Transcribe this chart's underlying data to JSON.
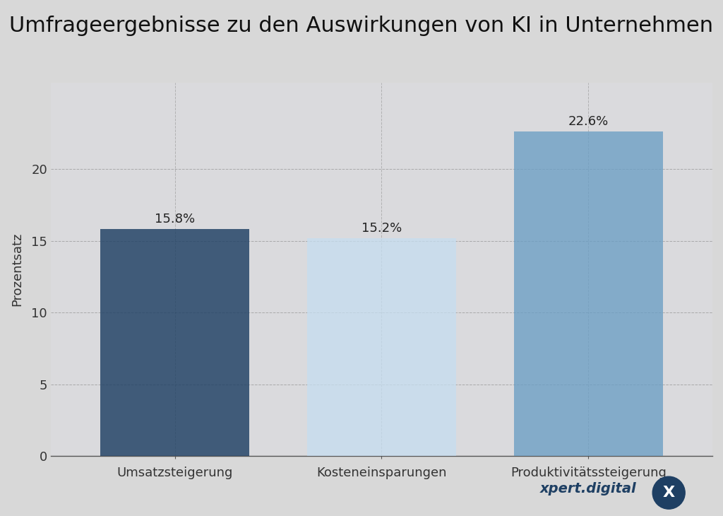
{
  "title": "Umfrageergebnisse zu den Auswirkungen von KI in Unternehmen",
  "categories": [
    "Umsatzsteigerung",
    "Kosteneinsparungen",
    "Produktivitätssteigerung"
  ],
  "values": [
    15.8,
    15.2,
    22.6
  ],
  "bar_colors": [
    "#1e3f63",
    "#c5ddf0",
    "#6b9ec4"
  ],
  "bar_alphas": [
    0.82,
    0.75,
    0.78
  ],
  "bar_labels": [
    "15.8%",
    "15.2%",
    "22.6%"
  ],
  "ylabel": "Prozentsatz",
  "ylim": [
    0,
    26
  ],
  "yticks": [
    0,
    5,
    10,
    15,
    20
  ],
  "grid_color": "#888888",
  "background_color": "#d8d8d8",
  "title_fontsize": 22,
  "label_fontsize": 13,
  "tick_fontsize": 13,
  "value_fontsize": 13,
  "ylabel_fontsize": 13,
  "watermark_text": "xpert.digital",
  "watermark_color": "#1e3f63",
  "bar_width": 0.72
}
